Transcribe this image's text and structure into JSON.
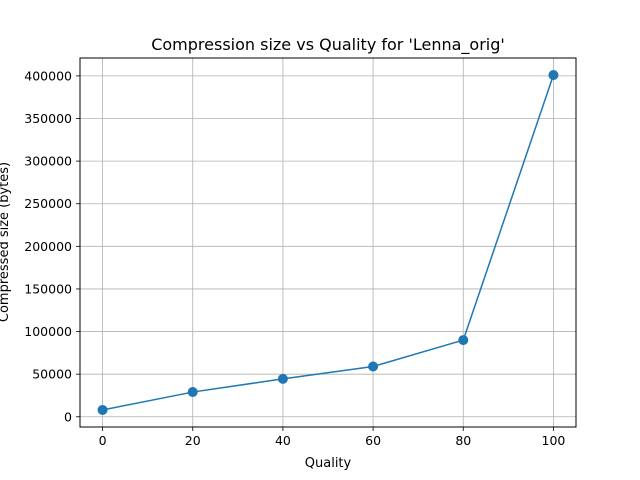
{
  "chart_data": {
    "type": "line",
    "title": "Compression size vs Quality for 'Lenna_orig'",
    "xlabel": "Quality",
    "ylabel": "Compressed size (bytes)",
    "xlim": [
      -5,
      105
    ],
    "ylim": [
      -12000,
      421000
    ],
    "xticks": [
      0,
      20,
      40,
      60,
      80,
      100
    ],
    "yticks": [
      0,
      50000,
      100000,
      150000,
      200000,
      250000,
      300000,
      350000,
      400000
    ],
    "grid": true,
    "legend": "none",
    "series": [
      {
        "color": "#1f77b4",
        "marker": "circle",
        "x": [
          0,
          20,
          40,
          60,
          80,
          100
        ],
        "y": [
          8000,
          29000,
          44500,
          59000,
          90000,
          401000
        ]
      }
    ]
  }
}
